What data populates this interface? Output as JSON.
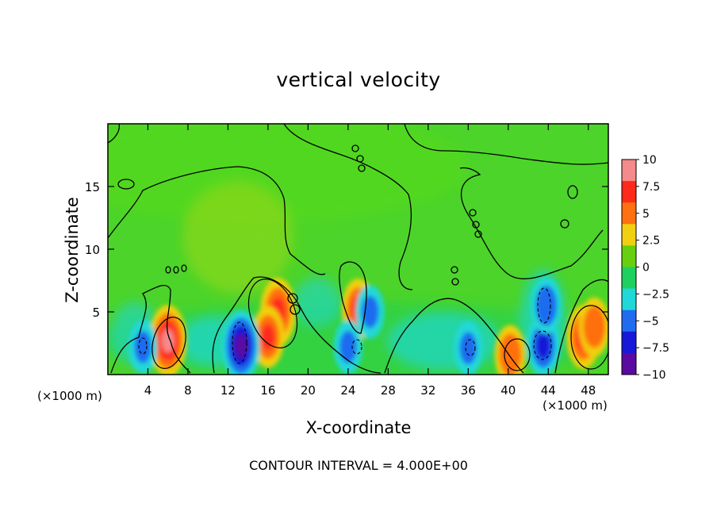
{
  "chart_data": {
    "type": "heatmap",
    "title": "vertical velocity",
    "xlabel": "X-coordinate",
    "ylabel": "Z-coordinate",
    "x_unit_label": "(×1000 m)",
    "footnote": "CONTOUR INTERVAL = 4.000E+00",
    "xlim": [
      0,
      50
    ],
    "ylim": [
      0,
      20
    ],
    "x_ticks": [
      4,
      8,
      12,
      16,
      20,
      24,
      28,
      32,
      36,
      40,
      44,
      48
    ],
    "y_ticks": [
      5,
      10,
      15
    ],
    "colorbar": {
      "range": [
        -10,
        10
      ],
      "ticks": [
        10,
        7.5,
        5,
        2.5,
        0,
        -2.5,
        -5,
        -7.5,
        -10
      ],
      "tick_labels": [
        "10",
        "7.5",
        "5",
        "2.5",
        "0",
        "−2.5",
        "−5",
        "−7.5",
        "−10"
      ],
      "colors": [
        "#f48a8a",
        "#ff2a1a",
        "#ff7010",
        "#f0d010",
        "#66d010",
        "#1ed060",
        "#20d8d8",
        "#1f6cf0",
        "#1818d8",
        "#5a0aa0"
      ]
    },
    "features": [
      {
        "x": 6.0,
        "z": 2.7,
        "value": 8.5
      },
      {
        "x": 17.0,
        "z": 5.0,
        "value": 7.8
      },
      {
        "x": 16.0,
        "z": 3.0,
        "value": 6.5
      },
      {
        "x": 25.0,
        "z": 5.2,
        "value": 6.5
      },
      {
        "x": 40.2,
        "z": 1.6,
        "value": 6.0
      },
      {
        "x": 47.5,
        "z": 3.0,
        "value": 7.0
      },
      {
        "x": 48.6,
        "z": 3.8,
        "value": 6.0
      },
      {
        "x": 13.3,
        "z": 2.3,
        "value": -8.5
      },
      {
        "x": 43.5,
        "z": 2.3,
        "value": -6.5
      },
      {
        "x": 43.8,
        "z": 5.5,
        "value": -5.5
      },
      {
        "x": 3.5,
        "z": 2.2,
        "value": -5.0
      },
      {
        "x": 24.0,
        "z": 2.2,
        "value": -5.0
      },
      {
        "x": 26.2,
        "z": 5.0,
        "value": -5.0
      },
      {
        "x": 36.0,
        "z": 2.1,
        "value": -5.0
      }
    ]
  }
}
